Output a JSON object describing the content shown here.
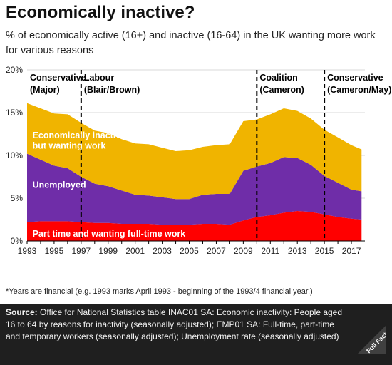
{
  "title": "Economically inactive?",
  "subtitle": "% of economically active (16+) and inactive (16-64) in the UK wanting more work for various reasons",
  "footnote": "*Years are financial (e.g. 1993 marks April 1993 - beginning of the 1993/4 financial year.)",
  "source": {
    "label": "Source:",
    "text": "Office for National Statistics table INAC01 SA: Economic inactivity: People aged 16 to 64 by reasons for inactivity (seasonally adjusted); EMP01 SA: Full-time, part-time and temporary workers (seasonally adjusted); Unemployment rate (seasonally adjusted)",
    "logo_text": "Full Fact"
  },
  "colors": {
    "part_time": "#ff0000",
    "unemployed": "#6f2da8",
    "inactive": "#f0b400",
    "grid": "#d9d9d9",
    "divider": "#000000"
  },
  "chart_data": {
    "type": "area",
    "stacked": true,
    "x": [
      1993,
      1994,
      1995,
      1996,
      1997,
      1998,
      1999,
      2000,
      2001,
      2002,
      2003,
      2004,
      2005,
      2006,
      2007,
      2008,
      2009,
      2010,
      2011,
      2012,
      2013,
      2014,
      2015,
      2016,
      2017,
      2017.75
    ],
    "series": [
      {
        "name": "Part time and wanting full-time work",
        "color": "#ff0000",
        "values": [
          2.2,
          2.3,
          2.3,
          2.3,
          2.2,
          2.1,
          2.1,
          2.0,
          2.0,
          2.0,
          1.9,
          1.9,
          1.9,
          2.0,
          2.0,
          1.9,
          2.4,
          2.8,
          3.0,
          3.3,
          3.5,
          3.4,
          3.1,
          2.8,
          2.6,
          2.5
        ]
      },
      {
        "name": "Unemployed",
        "color": "#6f2da8",
        "values": [
          8.0,
          7.2,
          6.5,
          6.2,
          5.3,
          4.6,
          4.3,
          3.9,
          3.4,
          3.3,
          3.2,
          3.0,
          3.0,
          3.4,
          3.5,
          3.6,
          5.8,
          5.9,
          6.1,
          6.5,
          6.2,
          5.5,
          4.5,
          4.0,
          3.4,
          3.3
        ]
      },
      {
        "name": "Economically inactive but wanting work",
        "color": "#f0b400",
        "values": [
          5.9,
          6.0,
          6.1,
          6.3,
          6.3,
          6.2,
          6.2,
          6.0,
          6.0,
          6.0,
          5.8,
          5.6,
          5.7,
          5.6,
          5.7,
          5.8,
          5.8,
          5.5,
          5.7,
          5.7,
          5.5,
          5.4,
          5.4,
          5.3,
          5.2,
          4.9
        ]
      }
    ],
    "xticks": [
      "1993",
      "1995",
      "1997",
      "1999",
      "2001",
      "2003",
      "2005",
      "2007",
      "2009",
      "2011",
      "2013",
      "2015",
      "2017"
    ],
    "yticks": [
      "0%",
      "5%",
      "10%",
      "15%",
      "20%"
    ],
    "ylim": [
      0,
      20
    ],
    "xlim": [
      1993,
      2018
    ],
    "grid": true,
    "series_labels": [
      "Economically inactive",
      "but wanting work",
      "Unemployed",
      "Part time and wanting full-time work"
    ],
    "government_dividers": [
      1997,
      2010,
      2015
    ],
    "governments": [
      {
        "line1": "Conservative",
        "line2": "(Major)",
        "start": 1993
      },
      {
        "line1": "Labour",
        "line2": "(Blair/Brown)",
        "start": 1997
      },
      {
        "line1": "Coalition",
        "line2": "(Cameron)",
        "start": 2010
      },
      {
        "line1": "Conservative",
        "line2": "(Cameron/May)",
        "start": 2015
      }
    ]
  }
}
